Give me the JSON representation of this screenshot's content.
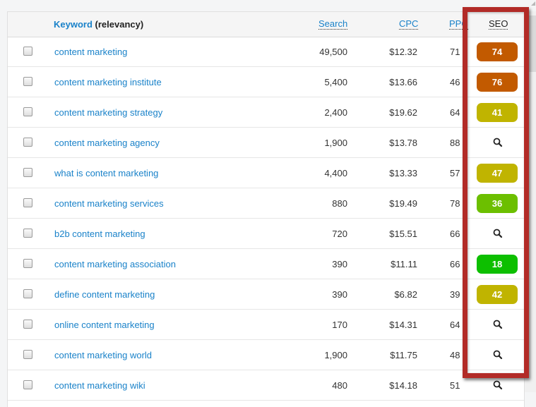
{
  "header": {
    "keyword_label": "Keyword",
    "keyword_suffix": "(relevancy)",
    "search_label": "Search",
    "cpc_label": "CPC",
    "ppc_label": "PPC",
    "seo_label": "SEO"
  },
  "colors": {
    "high": "#c25a00",
    "mid": "#c0b400",
    "low_mid": "#6cbf00",
    "low": "#0dbf00",
    "highlight_box": "#b22b27"
  },
  "rows": [
    {
      "keyword": "content marketing",
      "search": "49,500",
      "cpc": "$12.32",
      "ppc": "71",
      "seo": "74",
      "seo_color": "#c25a00"
    },
    {
      "keyword": "content marketing institute",
      "search": "5,400",
      "cpc": "$13.66",
      "ppc": "46",
      "seo": "76",
      "seo_color": "#c25a00"
    },
    {
      "keyword": "content marketing strategy",
      "search": "2,400",
      "cpc": "$19.62",
      "ppc": "64",
      "seo": "41",
      "seo_color": "#c0b400"
    },
    {
      "keyword": "content marketing agency",
      "search": "1,900",
      "cpc": "$13.78",
      "ppc": "88",
      "seo": null,
      "seo_icon": "search-icon"
    },
    {
      "keyword": "what is content marketing",
      "search": "4,400",
      "cpc": "$13.33",
      "ppc": "57",
      "seo": "47",
      "seo_color": "#c0b400"
    },
    {
      "keyword": "content marketing services",
      "search": "880",
      "cpc": "$19.49",
      "ppc": "78",
      "seo": "36",
      "seo_color": "#6cbf00"
    },
    {
      "keyword": "b2b content marketing",
      "search": "720",
      "cpc": "$15.51",
      "ppc": "66",
      "seo": null,
      "seo_icon": "search-icon"
    },
    {
      "keyword": "content marketing association",
      "search": "390",
      "cpc": "$11.11",
      "ppc": "66",
      "seo": "18",
      "seo_color": "#0dbf00"
    },
    {
      "keyword": "define content marketing",
      "search": "390",
      "cpc": "$6.82",
      "ppc": "39",
      "seo": "42",
      "seo_color": "#c0b400"
    },
    {
      "keyword": "online content marketing",
      "search": "170",
      "cpc": "$14.31",
      "ppc": "64",
      "seo": null,
      "seo_icon": "search-icon"
    },
    {
      "keyword": "content marketing world",
      "search": "1,900",
      "cpc": "$11.75",
      "ppc": "48",
      "seo": null,
      "seo_icon": "search-icon"
    },
    {
      "keyword": "content marketing wiki",
      "search": "480",
      "cpc": "$14.18",
      "ppc": "51",
      "seo": null,
      "seo_icon": "search-icon"
    }
  ]
}
